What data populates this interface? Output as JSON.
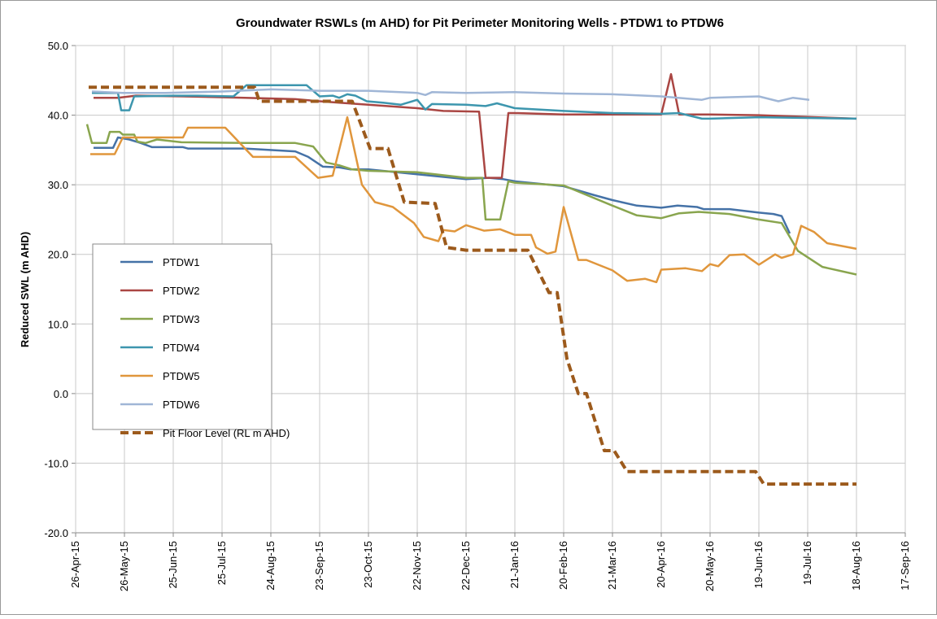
{
  "chart_data": {
    "type": "line",
    "title": "Groundwater RSWLs (m AHD) for Pit Perimeter Monitoring Wells - PTDW1 to PTDW6",
    "y_label": "Reduced SWL (m AHD)",
    "ylim": [
      -20,
      50
    ],
    "yticks": [
      {
        "value": -20,
        "label": "-20.0"
      },
      {
        "value": -10,
        "label": "-10.0"
      },
      {
        "value": 0,
        "label": "0.0"
      },
      {
        "value": 10,
        "label": "10.0"
      },
      {
        "value": 20,
        "label": "20.0"
      },
      {
        "value": 30,
        "label": "30.0"
      },
      {
        "value": 40,
        "label": "40.0"
      },
      {
        "value": 50,
        "label": "50.0"
      }
    ],
    "xlim": [
      "2015-04-26",
      "2016-09-17"
    ],
    "xticks": [
      {
        "value": "2015-04-26",
        "label": "26-Apr-15"
      },
      {
        "value": "2015-05-26",
        "label": "26-May-15"
      },
      {
        "value": "2015-06-25",
        "label": "25-Jun-15"
      },
      {
        "value": "2015-07-25",
        "label": "25-Jul-15"
      },
      {
        "value": "2015-08-24",
        "label": "24-Aug-15"
      },
      {
        "value": "2015-09-23",
        "label": "23-Sep-15"
      },
      {
        "value": "2015-10-23",
        "label": "23-Oct-15"
      },
      {
        "value": "2015-11-22",
        "label": "22-Nov-15"
      },
      {
        "value": "2015-12-22",
        "label": "22-Dec-15"
      },
      {
        "value": "2016-01-21",
        "label": "21-Jan-16"
      },
      {
        "value": "2016-02-20",
        "label": "20-Feb-16"
      },
      {
        "value": "2016-03-21",
        "label": "21-Mar-16"
      },
      {
        "value": "2016-04-20",
        "label": "20-Apr-16"
      },
      {
        "value": "2016-05-20",
        "label": "20-May-16"
      },
      {
        "value": "2016-06-19",
        "label": "19-Jun-16"
      },
      {
        "value": "2016-07-19",
        "label": "19-Jul-16"
      },
      {
        "value": "2016-08-18",
        "label": "18-Aug-16"
      },
      {
        "value": "2016-09-17",
        "label": "17-Sep-16"
      }
    ],
    "grid": true,
    "legend": "left",
    "series": [
      {
        "name": "PTDW1",
        "color": "#4572a7",
        "x": [
          "2015-05-07",
          "2015-05-19",
          "2015-05-22",
          "2015-05-29",
          "2015-06-05",
          "2015-06-12",
          "2015-07-01",
          "2015-07-04",
          "2015-08-08",
          "2015-09-08",
          "2015-09-16",
          "2015-09-25",
          "2015-10-05",
          "2015-10-12",
          "2015-10-23",
          "2015-11-22",
          "2015-12-22",
          "2016-01-05",
          "2016-01-14",
          "2016-01-21",
          "2016-02-20",
          "2016-03-10",
          "2016-03-21",
          "2016-04-05",
          "2016-04-20",
          "2016-04-30",
          "2016-05-12",
          "2016-05-16",
          "2016-06-01",
          "2016-06-19",
          "2016-06-28",
          "2016-07-03",
          "2016-07-08"
        ],
        "values": [
          35.3,
          35.3,
          36.8,
          36.5,
          36.0,
          35.4,
          35.4,
          35.2,
          35.2,
          34.8,
          34.0,
          32.6,
          32.5,
          32.2,
          32.2,
          31.5,
          30.8,
          31.0,
          30.8,
          30.5,
          29.8,
          28.5,
          27.8,
          27.0,
          26.7,
          27.0,
          26.8,
          26.5,
          26.5,
          26.0,
          25.8,
          25.5,
          23.0
        ]
      },
      {
        "name": "PTDW2",
        "color": "#aa4643",
        "x": [
          "2015-05-07",
          "2015-05-22",
          "2015-06-02",
          "2015-07-01",
          "2015-08-08",
          "2015-09-08",
          "2015-09-23",
          "2015-10-05",
          "2015-10-23",
          "2015-11-22",
          "2015-12-08",
          "2015-12-30",
          "2016-01-03",
          "2016-01-13",
          "2016-01-17",
          "2016-01-21",
          "2016-02-20",
          "2016-04-20",
          "2016-04-26",
          "2016-05-01",
          "2016-05-20",
          "2016-06-19",
          "2016-08-18"
        ],
        "values": [
          42.5,
          42.5,
          42.8,
          42.7,
          42.5,
          42.3,
          42.0,
          41.8,
          41.5,
          41.0,
          40.6,
          40.5,
          31.0,
          31.0,
          40.3,
          40.3,
          40.1,
          40.1,
          45.9,
          40.1,
          40.1,
          40.0,
          39.5
        ]
      },
      {
        "name": "PTDW3",
        "color": "#89a54e",
        "x": [
          "2015-05-03",
          "2015-05-06",
          "2015-05-15",
          "2015-05-17",
          "2015-05-23",
          "2015-05-25",
          "2015-06-01",
          "2015-06-03",
          "2015-06-08",
          "2015-06-15",
          "2015-06-30",
          "2015-08-08",
          "2015-09-08",
          "2015-09-19",
          "2015-09-27",
          "2015-10-05",
          "2015-10-13",
          "2015-10-23",
          "2015-11-22",
          "2015-12-22",
          "2016-01-01",
          "2016-01-03",
          "2016-01-12",
          "2016-01-17",
          "2016-01-21",
          "2016-02-20",
          "2016-03-21",
          "2016-04-05",
          "2016-04-20",
          "2016-05-01",
          "2016-05-13",
          "2016-06-01",
          "2016-06-19",
          "2016-07-03",
          "2016-07-13",
          "2016-07-28",
          "2016-08-18"
        ],
        "values": [
          38.7,
          36.0,
          36.0,
          37.6,
          37.6,
          37.2,
          37.2,
          36.2,
          36.0,
          36.5,
          36.1,
          36.0,
          36.0,
          35.5,
          33.2,
          32.8,
          32.2,
          32.0,
          31.8,
          31.0,
          31.0,
          25.0,
          25.0,
          30.5,
          30.3,
          29.9,
          27.0,
          25.6,
          25.2,
          25.9,
          26.1,
          25.8,
          25.0,
          24.5,
          20.5,
          18.2,
          17.1
        ]
      },
      {
        "name": "PTDW4",
        "color": "#3d96ae",
        "x": [
          "2015-05-06",
          "2015-05-22",
          "2015-05-24",
          "2015-05-29",
          "2015-06-01",
          "2015-06-25",
          "2015-07-10",
          "2015-08-01",
          "2015-08-09",
          "2015-08-25",
          "2015-09-15",
          "2015-09-23",
          "2015-10-01",
          "2015-10-05",
          "2015-10-10",
          "2015-10-15",
          "2015-10-22",
          "2015-11-01",
          "2015-11-12",
          "2015-11-22",
          "2015-11-27",
          "2015-12-01",
          "2015-12-22",
          "2016-01-03",
          "2016-01-10",
          "2016-01-21",
          "2016-02-20",
          "2016-03-21",
          "2016-04-20",
          "2016-05-01",
          "2016-05-15",
          "2016-05-20",
          "2016-06-19",
          "2016-08-18"
        ],
        "values": [
          43.2,
          43.2,
          40.7,
          40.7,
          42.7,
          42.8,
          42.8,
          42.7,
          44.3,
          44.3,
          44.3,
          42.7,
          42.8,
          42.5,
          43.0,
          42.8,
          42.0,
          41.8,
          41.5,
          42.2,
          40.8,
          41.6,
          41.5,
          41.3,
          41.7,
          41.0,
          40.6,
          40.3,
          40.2,
          40.3,
          39.5,
          39.5,
          39.7,
          39.5
        ]
      },
      {
        "name": "PTDW5",
        "color": "#e0963c",
        "x": [
          "2015-05-05",
          "2015-05-20",
          "2015-05-25",
          "2015-07-01",
          "2015-07-04",
          "2015-07-27",
          "2015-08-13",
          "2015-09-08",
          "2015-09-22",
          "2015-10-01",
          "2015-10-10",
          "2015-10-19",
          "2015-10-27",
          "2015-11-07",
          "2015-11-20",
          "2015-11-26",
          "2015-12-05",
          "2015-12-08",
          "2015-12-15",
          "2015-12-22",
          "2016-01-02",
          "2016-01-12",
          "2016-01-21",
          "2016-01-31",
          "2016-02-03",
          "2016-02-10",
          "2016-02-15",
          "2016-02-20",
          "2016-02-29",
          "2016-03-05",
          "2016-03-21",
          "2016-03-30",
          "2016-04-10",
          "2016-04-17",
          "2016-04-20",
          "2016-05-05",
          "2016-05-15",
          "2016-05-20",
          "2016-05-25",
          "2016-06-01",
          "2016-06-10",
          "2016-06-19",
          "2016-06-29",
          "2016-07-03",
          "2016-07-10",
          "2016-07-15",
          "2016-07-23",
          "2016-07-31",
          "2016-08-18"
        ],
        "values": [
          34.4,
          34.4,
          36.8,
          36.8,
          38.2,
          38.2,
          34.0,
          34.0,
          31.0,
          31.3,
          39.7,
          30.0,
          27.5,
          26.8,
          24.5,
          22.5,
          21.9,
          23.5,
          23.3,
          24.2,
          23.4,
          23.6,
          22.8,
          22.8,
          21.0,
          20.1,
          20.4,
          26.8,
          19.2,
          19.2,
          17.7,
          16.2,
          16.5,
          16.0,
          17.8,
          18.0,
          17.6,
          18.6,
          18.3,
          19.9,
          20.0,
          18.5,
          20.0,
          19.5,
          20.0,
          24.1,
          23.2,
          21.6,
          20.8
        ]
      },
      {
        "name": "PTDW6",
        "color": "#a0b6d6",
        "x": [
          "2015-05-06",
          "2015-05-25",
          "2015-06-20",
          "2015-07-25",
          "2015-08-24",
          "2015-09-23",
          "2015-10-23",
          "2015-11-22",
          "2015-11-27",
          "2015-12-01",
          "2015-12-22",
          "2016-01-21",
          "2016-02-20",
          "2016-03-21",
          "2016-04-20",
          "2016-05-15",
          "2016-05-20",
          "2016-06-19",
          "2016-07-01",
          "2016-07-10",
          "2016-07-20"
        ],
        "values": [
          43.4,
          43.2,
          43.2,
          43.4,
          43.7,
          43.5,
          43.5,
          43.2,
          42.9,
          43.3,
          43.2,
          43.3,
          43.1,
          43.0,
          42.7,
          42.2,
          42.5,
          42.7,
          42.0,
          42.5,
          42.2
        ]
      },
      {
        "name": "Pit Floor Level (RL m AHD)",
        "color": "#9c5a1c",
        "dashed": true,
        "x": [
          "2015-05-04",
          "2015-08-14",
          "2015-08-17",
          "2015-10-13",
          "2015-10-24",
          "2015-11-04",
          "2015-11-14",
          "2015-12-03",
          "2015-12-10",
          "2015-12-22",
          "2016-01-29",
          "2016-02-11",
          "2016-02-16",
          "2016-02-22",
          "2016-02-29",
          "2016-03-05",
          "2016-03-16",
          "2016-03-22",
          "2016-03-30",
          "2016-06-17",
          "2016-06-22",
          "2016-08-18"
        ],
        "values": [
          44.0,
          44.0,
          42.0,
          42.0,
          35.2,
          35.2,
          27.5,
          27.3,
          21.0,
          20.6,
          20.6,
          14.5,
          14.5,
          5.0,
          0.0,
          0.0,
          -8.2,
          -8.2,
          -11.2,
          -11.2,
          -13.0,
          -13.0
        ]
      }
    ]
  }
}
